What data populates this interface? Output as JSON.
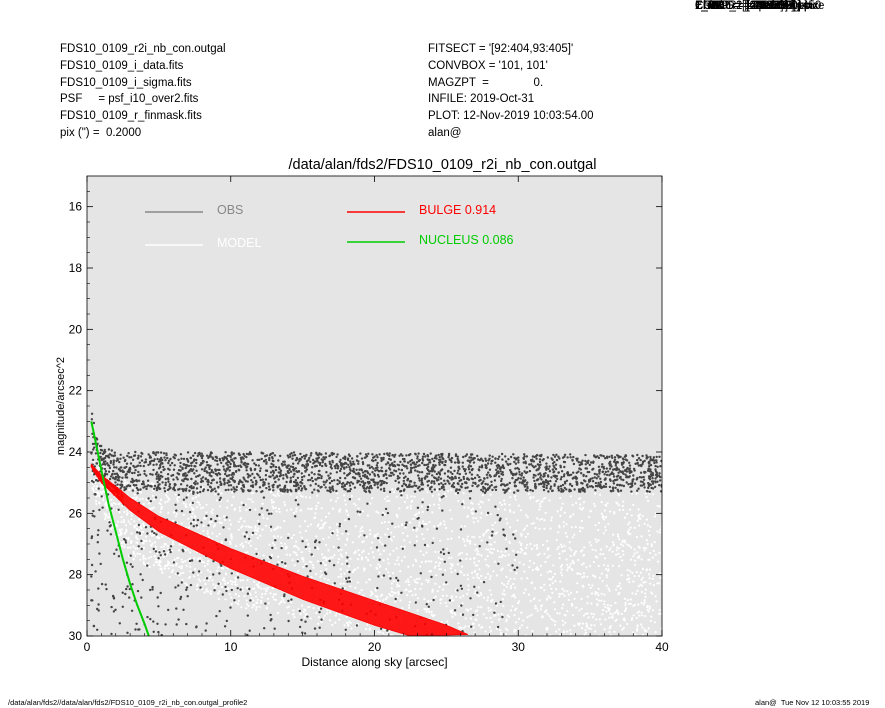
{
  "header_left": [
    "FDS10_0109_r2i_nb_con.outgal",
    "FDS10_0109_i_data.fits",
    "FDS10_0109_i_sigma.fits",
    "PSF     = psf_i10_over2.fits",
    "FDS10_0109_r_finmask.fits",
    "pix (\") =  0.2000"
  ],
  "header_mid": [
    "FITSECT = '[92:404,93:405]'",
    "CONVBOX = '101, 101'",
    "MAGZPT  =              0.",
    "INFILE: 2019-Oct-31",
    "PLOT: 12-Nov-2019 10:03:54.00",
    "alan@"
  ],
  "header_right": [
    "COMP_1  = sersic",
    "1_XC    = [249.5000] pix",
    "1_YC    = [250.5000] pix",
    "1_MAG   = 19.5567",
    "1_RE    = [40.8688] pix",
    "1_N     = [1.7153]",
    "1_AR    = [0.7821]",
    "1_PA    = [-34.9299]",
    "COMP_2  = psf",
    "2_MAG   = 22.1709",
    "ERROR   = Convergence",
    "Chi2/nu=      0.96444450"
  ],
  "footer_left": "/data/alan/fds2//data/alan/fds2/FDS10_0109_r2i_nb_con.outgal_profile2",
  "footer_right": "alan@  Tue Nov 12 10:03:55 2019",
  "chart_data": {
    "type": "scatter",
    "title": "/data/alan/fds2/FDS10_0109_r2i_nb_con.outgal",
    "xlabel": "Distance along sky [arcsec]",
    "ylabel": "magnitude/arcsec^2",
    "xlim": [
      0,
      40
    ],
    "ylim": [
      30,
      15
    ],
    "y_inverted": true,
    "xticks": [
      0,
      10,
      20,
      30,
      40
    ],
    "yticks": [
      16,
      18,
      20,
      22,
      24,
      26,
      28,
      30
    ],
    "background": "#e5e5e5",
    "grid": false,
    "legend": [
      {
        "name": "OBS",
        "value": "",
        "color": "#888888"
      },
      {
        "name": "MODEL",
        "value": "",
        "color": "#ffffff"
      },
      {
        "name": "BULGE",
        "value": "0.914",
        "color": "#ff0000"
      },
      {
        "name": "NUCLEUS",
        "value": "0.086",
        "color": "#00cc00"
      }
    ],
    "series": [
      {
        "name": "OBS",
        "color": "#444444",
        "band_upper": [
          [
            0.3,
            22.6
          ],
          [
            1,
            23.8
          ],
          [
            2,
            24.0
          ],
          [
            10,
            24.0
          ],
          [
            40,
            24.1
          ]
        ],
        "band_lower": [
          [
            0.3,
            25.0
          ],
          [
            3,
            25.3
          ],
          [
            40,
            25.3
          ]
        ],
        "sparse_to": 30
      },
      {
        "name": "MODEL",
        "color": "#ffffff",
        "band_upper": [
          [
            0.3,
            24.2
          ],
          [
            3,
            25.0
          ],
          [
            40,
            25.3
          ]
        ],
        "band_lower": [
          [
            0.3,
            25.5
          ],
          [
            3,
            27.5
          ],
          [
            10,
            29.0
          ],
          [
            20,
            30
          ],
          [
            40,
            30
          ]
        ]
      },
      {
        "name": "BULGE",
        "color": "#ff0000",
        "upper": [
          [
            0.3,
            24.4
          ],
          [
            1,
            24.75
          ],
          [
            3,
            25.5
          ],
          [
            5,
            26.1
          ],
          [
            10,
            27.15
          ],
          [
            15,
            28.05
          ],
          [
            20,
            28.85
          ],
          [
            25,
            29.65
          ],
          [
            26.5,
            29.95
          ]
        ],
        "lower": [
          [
            0.3,
            24.5
          ],
          [
            1,
            25.0
          ],
          [
            3,
            25.9
          ],
          [
            5,
            26.6
          ],
          [
            10,
            27.8
          ],
          [
            15,
            28.8
          ],
          [
            20,
            29.65
          ],
          [
            22.5,
            30.0
          ]
        ]
      },
      {
        "name": "NUCLEUS",
        "color": "#00cc00",
        "points": [
          [
            0.3,
            23.0
          ],
          [
            0.7,
            23.9
          ],
          [
            1.0,
            24.6
          ],
          [
            1.5,
            25.7
          ],
          [
            2.0,
            26.6
          ],
          [
            2.5,
            27.5
          ],
          [
            3.0,
            28.3
          ],
          [
            3.5,
            29.0
          ],
          [
            4.0,
            29.6
          ],
          [
            4.3,
            30.0
          ]
        ]
      }
    ]
  }
}
